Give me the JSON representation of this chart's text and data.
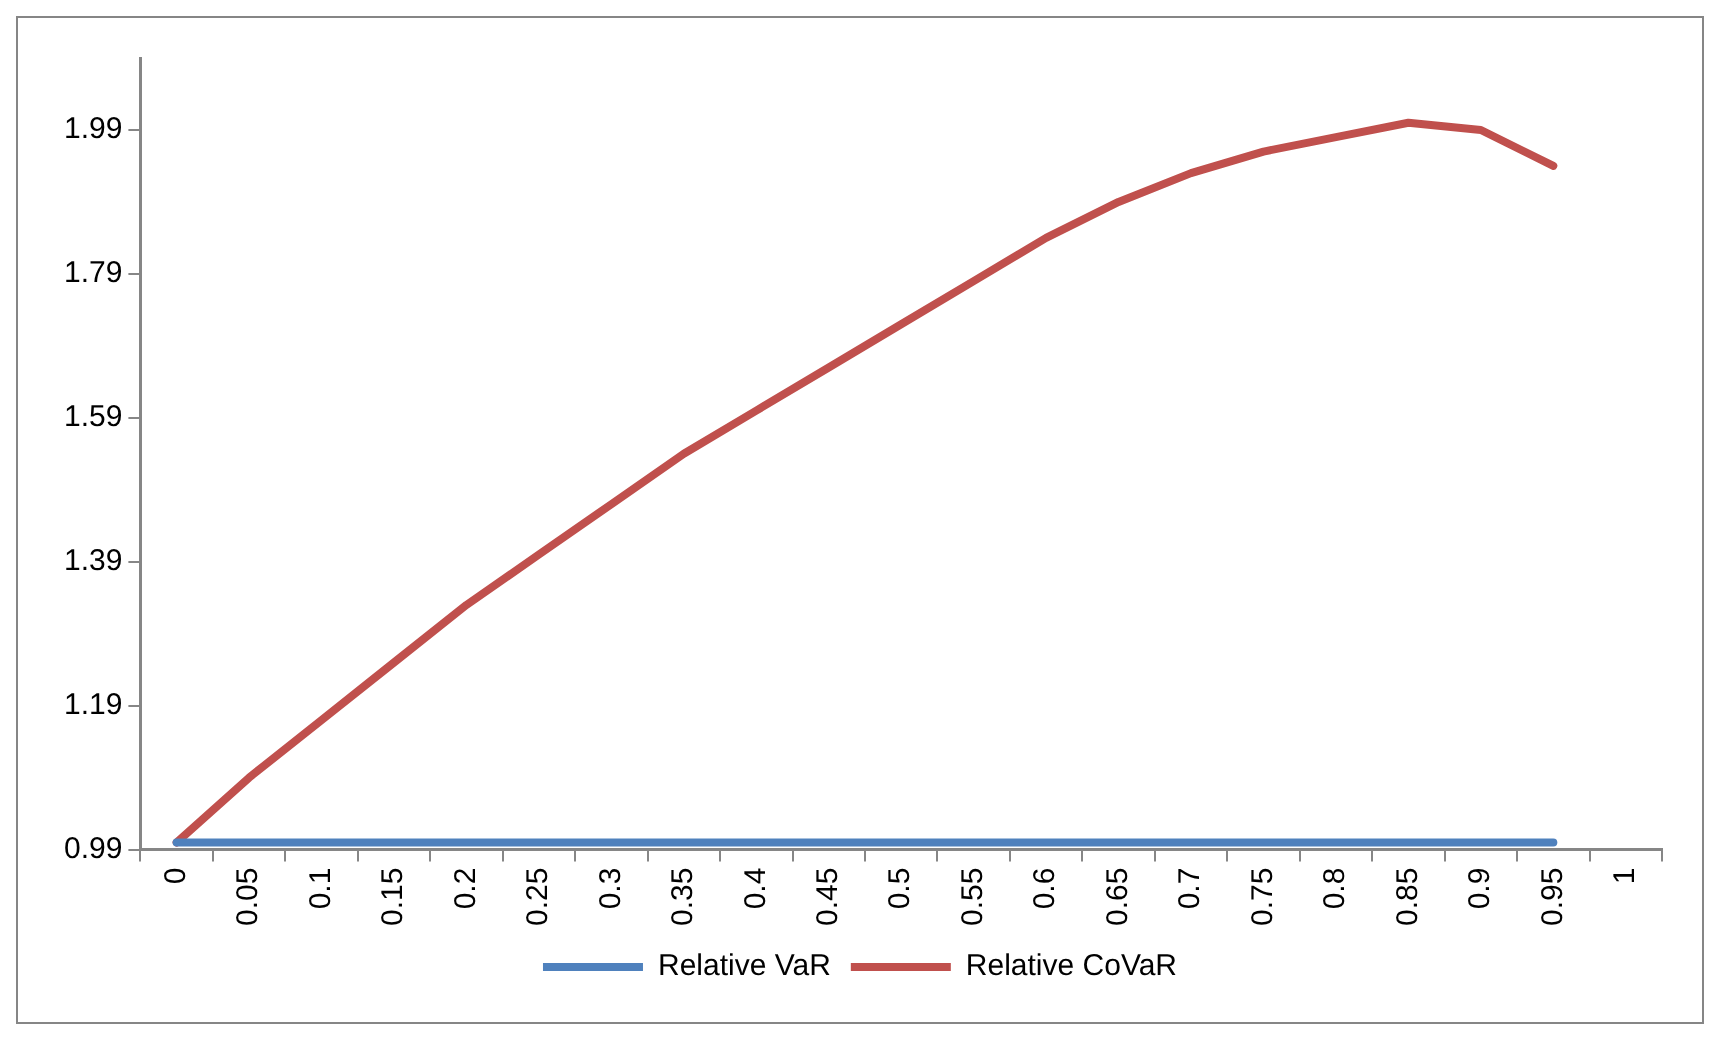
{
  "chart_data": {
    "type": "line",
    "categories": [
      "0",
      "0.05",
      "0.1",
      "0.15",
      "0.2",
      "0.25",
      "0.3",
      "0.35",
      "0.4",
      "0.45",
      "0.5",
      "0.55",
      "0.6",
      "0.65",
      "0.7",
      "0.75",
      "0.8",
      "0.85",
      "0.9",
      "0.95",
      "1"
    ],
    "series": [
      {
        "name": "Relative VaR",
        "color": "#4f81bd",
        "values": [
          1.0,
          1.0,
          1.0,
          1.0,
          1.0,
          1.0,
          1.0,
          1.0,
          1.0,
          1.0,
          1.0,
          1.0,
          1.0,
          1.0,
          1.0,
          1.0,
          1.0,
          1.0,
          1.0,
          1.0,
          null
        ]
      },
      {
        "name": "Relative CoVaR",
        "color": "#c0504d",
        "values": [
          1.0,
          1.09,
          1.17,
          1.25,
          1.33,
          1.4,
          1.47,
          1.54,
          1.6,
          1.66,
          1.72,
          1.78,
          1.84,
          1.89,
          1.93,
          1.96,
          1.98,
          2.0,
          1.99,
          1.94,
          null
        ]
      }
    ],
    "ylim": [
      0.99,
      2.09
    ],
    "yticks": [
      0.99,
      1.19,
      1.39,
      1.59,
      1.79,
      1.99
    ],
    "grid": false,
    "legend": "bottom",
    "marker": "none",
    "line_style": "solid"
  }
}
